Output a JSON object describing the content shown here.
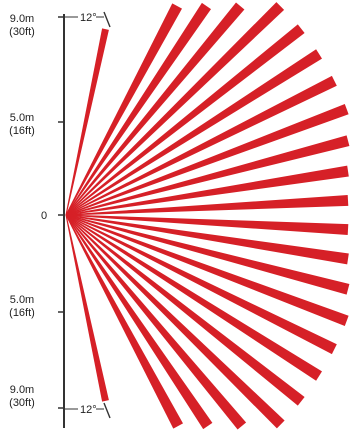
{
  "axis": {
    "top_label": {
      "line1": "9.0m",
      "line2": "(30ft)"
    },
    "upper_label": {
      "line1": "5.0m",
      "line2": "(16ft)"
    },
    "origin_label": "0",
    "lower_label": {
      "line1": "5.0m",
      "line2": "(16ft)"
    },
    "bottom_label": {
      "line1": "9.0m",
      "line2": "(30ft)"
    }
  },
  "angle_labels": {
    "top": "12°",
    "bottom": "12°"
  },
  "colors": {
    "beam": "#d62027",
    "axis": "#333333",
    "background": "#ffffff"
  },
  "beams": {
    "outer_zone_count": 11,
    "inner_zone_count": 12,
    "short_long_range_pair": true
  }
}
